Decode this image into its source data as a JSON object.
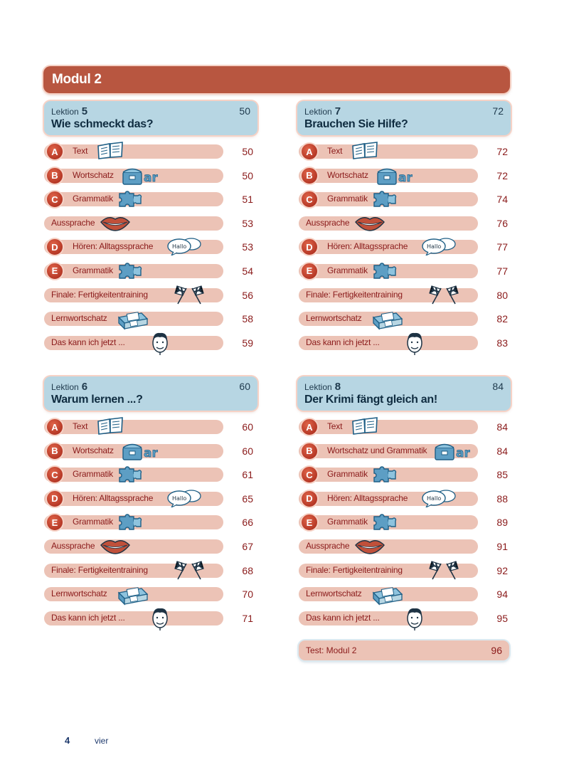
{
  "modul_title": "Modul 2",
  "lektion_label": "Lektion",
  "lektionen": [
    {
      "number": "5",
      "page": "50",
      "title": "Wie schmeckt das?",
      "rows": [
        {
          "badge": "A",
          "label": "Text",
          "icon": "book-icon",
          "page": "50"
        },
        {
          "badge": "B",
          "label": "Wortschatz",
          "icon": "word-chest-icon",
          "page": "50"
        },
        {
          "badge": "C",
          "label": "Grammatik",
          "icon": "puzzle-icon",
          "page": "51"
        },
        {
          "badge": "",
          "label": "Aussprache",
          "icon": "lips-icon",
          "page": "53"
        },
        {
          "badge": "D",
          "label": "Hören: Alltagssprache",
          "icon": "speech-bubble-icon",
          "page": "53"
        },
        {
          "badge": "E",
          "label": "Grammatik",
          "icon": "puzzle-icon",
          "page": "54"
        },
        {
          "badge": "",
          "label": "Finale: Fertigkeitentraining",
          "icon": "checkered-flags-icon",
          "page": "56"
        },
        {
          "badge": "",
          "label": "Lernwortschatz",
          "icon": "card-box-icon",
          "page": "58"
        },
        {
          "badge": "",
          "label": "Das kann ich jetzt ...",
          "icon": "face-icon",
          "page": "59"
        }
      ]
    },
    {
      "number": "7",
      "page": "72",
      "title": "Brauchen Sie Hilfe?",
      "rows": [
        {
          "badge": "A",
          "label": "Text",
          "icon": "book-icon",
          "page": "72"
        },
        {
          "badge": "B",
          "label": "Wortschatz",
          "icon": "word-chest-icon",
          "page": "72"
        },
        {
          "badge": "C",
          "label": "Grammatik",
          "icon": "puzzle-icon",
          "page": "74"
        },
        {
          "badge": "",
          "label": "Aussprache",
          "icon": "lips-icon",
          "page": "76"
        },
        {
          "badge": "D",
          "label": "Hören: Alltagssprache",
          "icon": "speech-bubble-icon",
          "page": "77"
        },
        {
          "badge": "E",
          "label": "Grammatik",
          "icon": "puzzle-icon",
          "page": "77"
        },
        {
          "badge": "",
          "label": "Finale: Fertigkeitentraining",
          "icon": "checkered-flags-icon",
          "page": "80"
        },
        {
          "badge": "",
          "label": "Lernwortschatz",
          "icon": "card-box-icon",
          "page": "82"
        },
        {
          "badge": "",
          "label": "Das kann ich jetzt ...",
          "icon": "face-icon",
          "page": "83"
        }
      ]
    },
    {
      "number": "6",
      "page": "60",
      "title": "Warum lernen ...?",
      "rows": [
        {
          "badge": "A",
          "label": "Text",
          "icon": "book-icon",
          "page": "60"
        },
        {
          "badge": "B",
          "label": "Wortschatz",
          "icon": "word-chest-icon",
          "page": "60"
        },
        {
          "badge": "C",
          "label": "Grammatik",
          "icon": "puzzle-icon",
          "page": "61"
        },
        {
          "badge": "D",
          "label": "Hören: Alltagssprache",
          "icon": "speech-bubble-icon",
          "page": "65"
        },
        {
          "badge": "E",
          "label": "Grammatik",
          "icon": "puzzle-icon",
          "page": "66"
        },
        {
          "badge": "",
          "label": "Aussprache",
          "icon": "lips-icon",
          "page": "67"
        },
        {
          "badge": "",
          "label": "Finale: Fertigkeitentraining",
          "icon": "checkered-flags-icon",
          "page": "68"
        },
        {
          "badge": "",
          "label": "Lernwortschatz",
          "icon": "card-box-icon",
          "page": "70"
        },
        {
          "badge": "",
          "label": "Das kann ich jetzt ...",
          "icon": "face-icon",
          "page": "71"
        }
      ]
    },
    {
      "number": "8",
      "page": "84",
      "title": "Der Krimi fängt gleich an!",
      "rows": [
        {
          "badge": "A",
          "label": "Text",
          "icon": "book-icon",
          "page": "84"
        },
        {
          "badge": "B",
          "label": "Wortschatz und Grammatik",
          "icon": "word-chest-icon",
          "page": "84"
        },
        {
          "badge": "C",
          "label": "Grammatik",
          "icon": "puzzle-icon",
          "page": "85"
        },
        {
          "badge": "D",
          "label": "Hören: Alltagssprache",
          "icon": "speech-bubble-icon",
          "page": "88"
        },
        {
          "badge": "E",
          "label": "Grammatik",
          "icon": "puzzle-icon",
          "page": "89"
        },
        {
          "badge": "",
          "label": "Aussprache",
          "icon": "lips-icon",
          "page": "91"
        },
        {
          "badge": "",
          "label": "Finale: Fertigkeitentraining",
          "icon": "checkered-flags-icon",
          "page": "92"
        },
        {
          "badge": "",
          "label": "Lernwortschatz",
          "icon": "card-box-icon",
          "page": "94"
        },
        {
          "badge": "",
          "label": "Das kann ich jetzt ...",
          "icon": "face-icon",
          "page": "95"
        }
      ]
    }
  ],
  "test": {
    "label": "Test: Modul 2",
    "page": "96"
  },
  "icon_text": {
    "chest": "ar",
    "bubble": "Hallo"
  },
  "footer": {
    "page_number": "4",
    "page_word": "vier"
  },
  "colors": {
    "modul_bar": "#b85640",
    "lektion_box": "#b7d6e3",
    "row_bar": "#ecc3b6",
    "badge": "#c23a25",
    "text": "#8a1a1a"
  }
}
